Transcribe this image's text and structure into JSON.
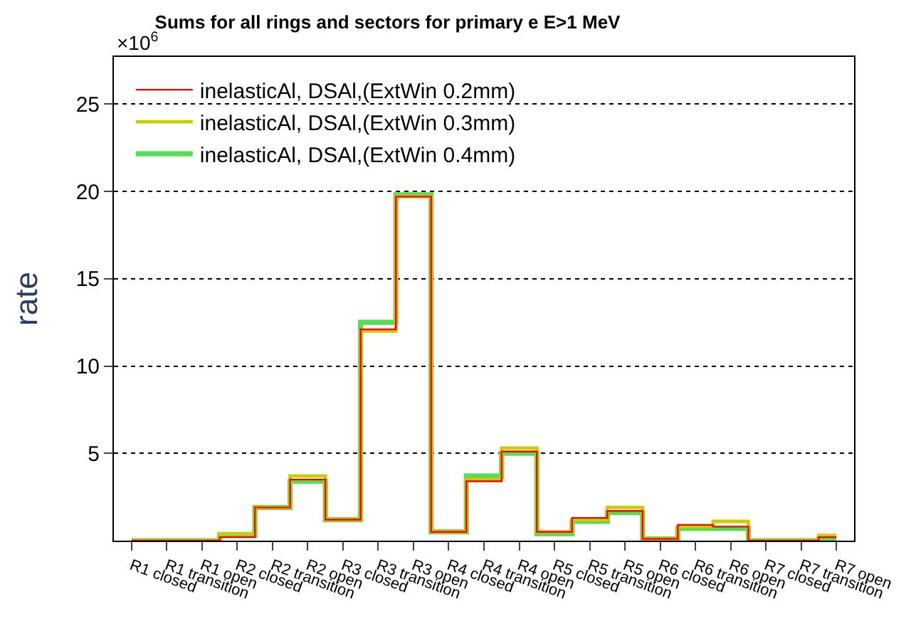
{
  "chart_data": {
    "type": "step",
    "title": "Sums for all rings and sectors for primary e E>1 MeV",
    "ylabel": "rate",
    "categories": [
      "R1 closed",
      "R1 transition",
      "R1 open",
      "R2 closed",
      "R2 transition",
      "R2 open",
      "R3 closed",
      "R3 transition",
      "R3 open",
      "R4 closed",
      "R4 transition",
      "R4 open",
      "R5 closed",
      "R5 transition",
      "R5 open",
      "R6 closed",
      "R6 transition",
      "R6 open",
      "R7 closed",
      "R7 transition",
      "R7 open"
    ],
    "series": [
      {
        "name": "inelasticAl, DSAl,(ExtWin 0.2mm)",
        "color": "#ff0000",
        "values": [
          0,
          0,
          0,
          0.2,
          1.9,
          3.5,
          1.2,
          12.1,
          19.7,
          0.5,
          3.4,
          5.1,
          0.5,
          1.3,
          1.7,
          0.1,
          0.9,
          0.8,
          0,
          0,
          0.2
        ]
      },
      {
        "name": "inelasticAl, DSAl,(ExtWin 0.3mm)",
        "color": "#cccc00",
        "values": [
          0,
          0,
          0,
          0.4,
          1.9,
          3.7,
          1.2,
          12.0,
          19.7,
          0.5,
          3.5,
          5.3,
          0.5,
          1.2,
          1.9,
          0.1,
          0.8,
          1.1,
          0,
          0,
          0.3
        ]
      },
      {
        "name": "inelasticAl, DSAl,(ExtWin 0.4mm)",
        "color": "#55dd55",
        "values": [
          0,
          0,
          0,
          0.3,
          1.9,
          3.4,
          1.2,
          12.5,
          19.8,
          0.5,
          3.7,
          5.0,
          0.4,
          1.1,
          1.6,
          0.1,
          0.7,
          0.7,
          0,
          0,
          0.1
        ]
      }
    ],
    "ylim": [
      0,
      27.7
    ],
    "yticks": [
      5,
      10,
      15,
      20,
      25
    ],
    "grid": "y",
    "legend": "top left",
    "annotations": [
      "×10$^{6}$"
    ]
  }
}
